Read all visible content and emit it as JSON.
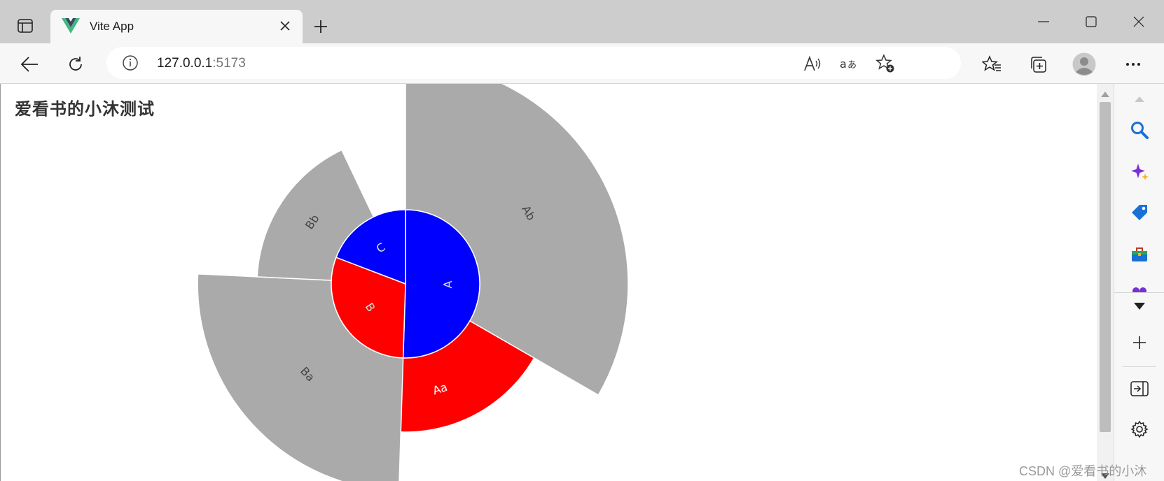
{
  "window": {
    "tab_title": "Vite App",
    "url_host": "127.0.0.1",
    "url_port": ":5173"
  },
  "page": {
    "heading": "爱看书的小沐测试"
  },
  "watermark": "CSDN @爱看书的小沐",
  "icons": {
    "tab_toggle": "tab-actions-icon",
    "favicon": "vue-logo-icon",
    "close": "close-icon",
    "new_tab": "plus-icon",
    "back": "back-arrow-icon",
    "refresh": "refresh-icon",
    "info": "info-icon",
    "read_aloud": "read-aloud-icon",
    "translate": "translate-icon",
    "favorite": "add-favorite-icon",
    "favorites": "favorites-icon",
    "collections": "collections-icon",
    "profile": "avatar-icon",
    "more": "more-icon"
  },
  "chart_data": {
    "type": "sunburst",
    "inner": [
      {
        "name": "A",
        "value": 5.0,
        "color": "#0000ff"
      },
      {
        "name": "B",
        "value": 3.0,
        "color": "#ff0000"
      },
      {
        "name": "C",
        "value": 1.9,
        "color": "#0000ff"
      }
    ],
    "outer": [
      {
        "name": "Ab",
        "parent": "A",
        "value": 3.3,
        "depth": 2.0,
        "color": "#aaaaaa"
      },
      {
        "name": "Aa",
        "parent": "A",
        "value": 2.3,
        "depth": 1.0,
        "color": "#ff0000"
      },
      {
        "name": "Ba",
        "parent": "B",
        "value": 2.5,
        "depth": 1.8,
        "color": "#aaaaaa"
      },
      {
        "name": "Bb",
        "parent": "B",
        "value": 1.7,
        "depth": 1.0,
        "color": "#aaaaaa"
      }
    ],
    "colors": {
      "inner_label": "#dddddd",
      "outer_label_light": "#444444",
      "outer_label_red": "#ffffff",
      "stroke": "#ffffff"
    }
  }
}
